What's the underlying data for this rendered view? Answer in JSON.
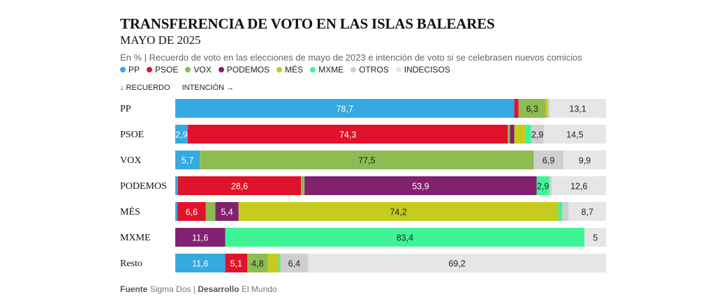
{
  "chart_data": {
    "type": "bar",
    "orientation": "horizontal-stacked-100",
    "title": "TRANSFERENCIA DE VOTO EN LAS ISLAS BALEARES",
    "subtitle": "MAYO DE 2025",
    "description": "En % | Recuerdo de voto en las elecciones de mayo de 2023 e intención de voto si se celebrasen nuevos comicios",
    "axis_hint": {
      "rows": "↓ RECUERDO",
      "segments": "INTENCIÓN →"
    },
    "legend_position": "top-left",
    "categories": [
      "PP",
      "PSOE",
      "VOX",
      "PODEMOS",
      "MÉS",
      "MXME",
      "Resto"
    ],
    "series": [
      {
        "name": "PP",
        "color": "#36a9e1",
        "values": [
          78.7,
          2.9,
          5.7,
          0.6,
          0.5,
          0,
          11.6
        ]
      },
      {
        "name": "PSOE",
        "color": "#e1122b",
        "values": [
          1.0,
          74.3,
          0,
          28.6,
          6.6,
          0,
          5.1
        ]
      },
      {
        "name": "VOX",
        "color": "#8bbd52",
        "values": [
          6.3,
          0.5,
          77.5,
          0.8,
          2.2,
          0,
          4.8
        ]
      },
      {
        "name": "PODEMOS",
        "color": "#82216f",
        "values": [
          0,
          1.0,
          0,
          53.9,
          5.4,
          11.6,
          0
        ]
      },
      {
        "name": "MÉS",
        "color": "#c5cc1d",
        "values": [
          0.5,
          2.6,
          0,
          0,
          74.2,
          0,
          2.5
        ]
      },
      {
        "name": "MXME",
        "color": "#3ff497",
        "values": [
          0,
          1.3,
          0,
          2.9,
          0.9,
          83.4,
          0.4
        ]
      },
      {
        "name": "OTROS",
        "color": "#cfcfcf",
        "values": [
          0.4,
          2.9,
          6.9,
          0.6,
          1.5,
          0,
          6.4
        ]
      },
      {
        "name": "INDECISOS",
        "color": "#e6e6e6",
        "values": [
          13.1,
          14.5,
          9.9,
          12.6,
          8.7,
          5,
          69.2
        ]
      }
    ],
    "data_labels": [
      [
        {
          "s": 0,
          "t": "78,7"
        },
        {
          "s": 2,
          "t": "6,3"
        },
        {
          "s": 7,
          "t": "13,1"
        }
      ],
      [
        {
          "s": 0,
          "t": "2,9"
        },
        {
          "s": 1,
          "t": "74,3"
        },
        {
          "s": 6,
          "t": "2,9"
        },
        {
          "s": 7,
          "t": "14,5"
        }
      ],
      [
        {
          "s": 0,
          "t": "5,7"
        },
        {
          "s": 2,
          "t": "77,5"
        },
        {
          "s": 6,
          "t": "6,9"
        },
        {
          "s": 7,
          "t": "9,9"
        }
      ],
      [
        {
          "s": 1,
          "t": "28,6"
        },
        {
          "s": 3,
          "t": "53,9"
        },
        {
          "s": 5,
          "t": "2,9"
        },
        {
          "s": 7,
          "t": "12,6"
        }
      ],
      [
        {
          "s": 1,
          "t": "6,6"
        },
        {
          "s": 3,
          "t": "5,4"
        },
        {
          "s": 4,
          "t": "74,2"
        },
        {
          "s": 7,
          "t": "8,7"
        }
      ],
      [
        {
          "s": 3,
          "t": "11,6"
        },
        {
          "s": 5,
          "t": "83,4"
        },
        {
          "s": 7,
          "t": "5"
        }
      ],
      [
        {
          "s": 0,
          "t": "11,6"
        },
        {
          "s": 1,
          "t": "5,1"
        },
        {
          "s": 2,
          "t": "4,8"
        },
        {
          "s": 6,
          "t": "6,4"
        },
        {
          "s": 7,
          "t": "69,2"
        }
      ]
    ],
    "xlim": [
      0,
      100
    ]
  },
  "footer": {
    "source_label": "Fuente",
    "source_value": "Sigma Dos",
    "separator": "|",
    "dev_label": "Desarrollo",
    "dev_value": "El Mundo"
  }
}
